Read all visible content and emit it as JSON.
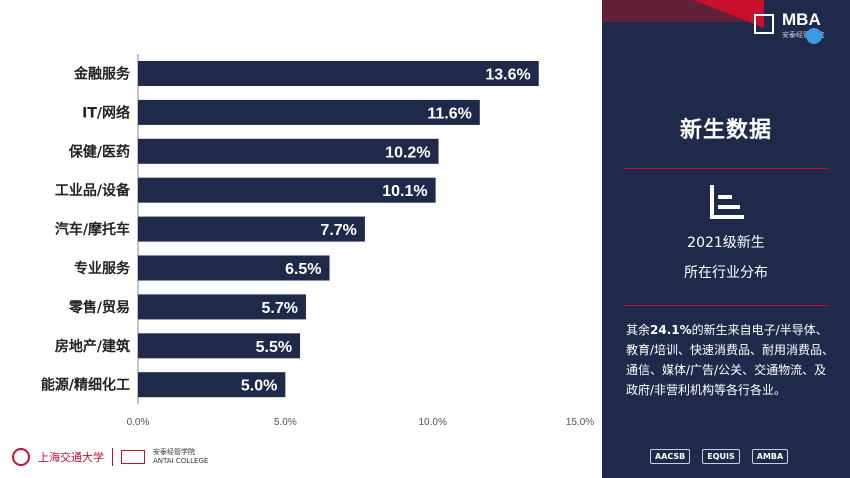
{
  "colors": {
    "bar": "#1f2a4a",
    "panel": "#1f2a4a",
    "accent": "#c8102e",
    "axis": "#888888"
  },
  "chart_data": {
    "type": "bar",
    "orientation": "horizontal",
    "categories": [
      "金融服务",
      "IT/网络",
      "保健/医药",
      "工业品/设备",
      "汽车/摩托车",
      "专业服务",
      "零售/贸易",
      "房地产/建筑",
      "能源/精细化工"
    ],
    "values": [
      13.6,
      11.6,
      10.2,
      10.1,
      7.7,
      6.5,
      5.7,
      5.5,
      5.0
    ],
    "value_labels": [
      "13.6%",
      "11.6%",
      "10.2%",
      "10.1%",
      "7.7%",
      "6.5%",
      "5.7%",
      "5.5%",
      "5.0%"
    ],
    "xlim": [
      0,
      15
    ],
    "xticks": [
      0,
      5,
      10,
      15
    ],
    "xtick_labels": [
      "0.0%",
      "5.0%",
      "10.0%",
      "15.0%"
    ],
    "grid": false,
    "legend": "none",
    "title": "",
    "xlabel": "",
    "ylabel": ""
  },
  "panel": {
    "logo_text": "MBA",
    "logo_sub": "安泰经管学院",
    "title": "新生数据",
    "icon": "bar-chart-icon",
    "caption_line1": "2021级新生",
    "caption_line2": "所在行业分布",
    "note_highlight": "24.1%",
    "note_prefix": "其余",
    "note_body": "的新生来自电子/半导体、教育/培训、快速消费品、耐用消费品、通信、媒体/广告/公关、交通物流、及政府/非营利机构等各行各业。",
    "accreditations": [
      "AACSB",
      "EQUIS",
      "AMBA"
    ]
  },
  "footer": {
    "university": "上海交通大学",
    "college": "安泰经管学院",
    "college_en": "ANTAI COLLEGE"
  }
}
